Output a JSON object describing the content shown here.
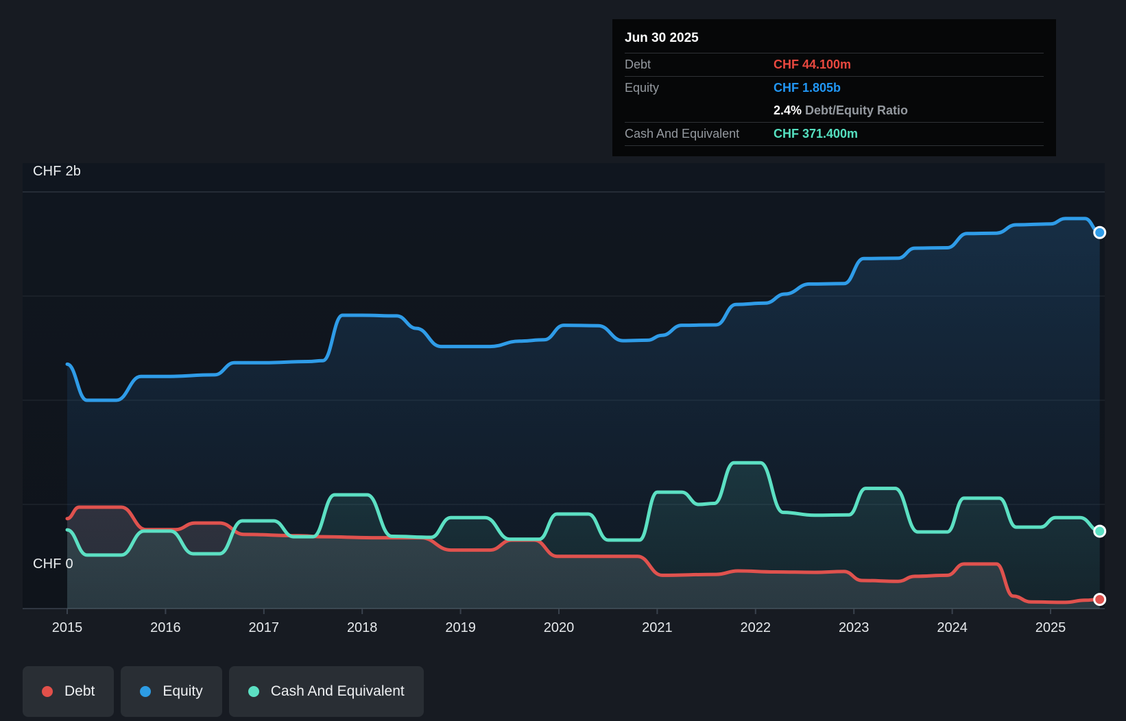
{
  "tooltip": {
    "date": "Jun 30 2025",
    "rows": {
      "debt": {
        "label": "Debt",
        "value": "CHF 44.100m",
        "color": "#e8483f"
      },
      "equity": {
        "label": "Equity",
        "value": "CHF 1.805b",
        "color": "#2196f3"
      },
      "cash": {
        "label": "Cash And Equivalent",
        "value": "CHF 371.400m",
        "color": "#55e0c0"
      }
    },
    "ratio": {
      "value": "2.4%",
      "label": "Debt/Equity Ratio"
    }
  },
  "y_axis": {
    "top_label": "CHF 2b",
    "bottom_label": "CHF 0"
  },
  "legend": {
    "items": [
      {
        "label": "Debt",
        "color": "#e2504a"
      },
      {
        "label": "Equity",
        "color": "#2d9ce4"
      },
      {
        "label": "Cash And Equivalent",
        "color": "#5ce0c3"
      }
    ]
  },
  "chart_data": {
    "type": "area",
    "title": "Debt to Equity History",
    "unit": "CHF millions",
    "x_domain": [
      2015.0,
      2025.5
    ],
    "y_domain_m": [
      0,
      2000
    ],
    "y_gridlines_m": [
      2000,
      1500,
      1000,
      500,
      0
    ],
    "x_tick_years": [
      "2015",
      "2016",
      "2017",
      "2018",
      "2019",
      "2020",
      "2021",
      "2022",
      "2023",
      "2024",
      "2025"
    ],
    "grid_on": true,
    "legend_position": "bottom-left",
    "colors": {
      "debt": "#e0524e",
      "equity": "#2f9ce8",
      "cash": "#5ce0c3"
    },
    "end_values_m": {
      "debt": 44.1,
      "equity": 1805,
      "cash": 371.4
    },
    "series": [
      {
        "name": "Equity",
        "key": "equity",
        "points": [
          [
            2015.0,
            1173
          ],
          [
            2015.2,
            1000
          ],
          [
            2015.5,
            1000
          ],
          [
            2015.75,
            1114
          ],
          [
            2016.0,
            1114
          ],
          [
            2016.5,
            1122
          ],
          [
            2016.7,
            1180
          ],
          [
            2017.0,
            1180
          ],
          [
            2017.45,
            1186
          ],
          [
            2017.6,
            1190
          ],
          [
            2017.8,
            1408
          ],
          [
            2018.0,
            1408
          ],
          [
            2018.35,
            1405
          ],
          [
            2018.55,
            1345
          ],
          [
            2018.8,
            1258
          ],
          [
            2019.3,
            1258
          ],
          [
            2019.6,
            1284
          ],
          [
            2019.85,
            1290
          ],
          [
            2020.05,
            1360
          ],
          [
            2020.4,
            1358
          ],
          [
            2020.65,
            1286
          ],
          [
            2020.9,
            1288
          ],
          [
            2021.05,
            1312
          ],
          [
            2021.25,
            1360
          ],
          [
            2021.6,
            1362
          ],
          [
            2021.8,
            1460
          ],
          [
            2022.1,
            1466
          ],
          [
            2022.3,
            1510
          ],
          [
            2022.55,
            1558
          ],
          [
            2022.9,
            1560
          ],
          [
            2023.1,
            1680
          ],
          [
            2023.45,
            1682
          ],
          [
            2023.62,
            1730
          ],
          [
            2023.95,
            1732
          ],
          [
            2024.15,
            1800
          ],
          [
            2024.45,
            1802
          ],
          [
            2024.65,
            1842
          ],
          [
            2025.0,
            1846
          ],
          [
            2025.15,
            1872
          ],
          [
            2025.35,
            1872
          ],
          [
            2025.5,
            1805
          ]
        ]
      },
      {
        "name": "Debt",
        "key": "debt",
        "points": [
          [
            2015.0,
            432
          ],
          [
            2015.12,
            487
          ],
          [
            2015.55,
            487
          ],
          [
            2015.8,
            379
          ],
          [
            2016.1,
            379
          ],
          [
            2016.3,
            411
          ],
          [
            2016.55,
            411
          ],
          [
            2016.8,
            356
          ],
          [
            2017.35,
            350
          ],
          [
            2017.6,
            345
          ],
          [
            2018.1,
            340
          ],
          [
            2018.6,
            340
          ],
          [
            2018.9,
            281
          ],
          [
            2019.3,
            281
          ],
          [
            2019.52,
            329
          ],
          [
            2019.75,
            329
          ],
          [
            2019.98,
            251
          ],
          [
            2020.8,
            251
          ],
          [
            2021.05,
            160
          ],
          [
            2021.6,
            164
          ],
          [
            2021.82,
            181
          ],
          [
            2022.2,
            176
          ],
          [
            2022.6,
            174
          ],
          [
            2022.9,
            178
          ],
          [
            2023.08,
            135
          ],
          [
            2023.45,
            131
          ],
          [
            2023.62,
            155
          ],
          [
            2023.95,
            160
          ],
          [
            2024.12,
            214
          ],
          [
            2024.45,
            214
          ],
          [
            2024.62,
            60
          ],
          [
            2024.8,
            32
          ],
          [
            2025.15,
            30
          ],
          [
            2025.35,
            40
          ],
          [
            2025.5,
            44.1
          ]
        ]
      },
      {
        "name": "Cash And Equivalent",
        "key": "cash",
        "points": [
          [
            2015.0,
            378
          ],
          [
            2015.2,
            257
          ],
          [
            2015.55,
            257
          ],
          [
            2015.78,
            372
          ],
          [
            2016.05,
            372
          ],
          [
            2016.28,
            263
          ],
          [
            2016.55,
            263
          ],
          [
            2016.78,
            421
          ],
          [
            2017.1,
            421
          ],
          [
            2017.3,
            345
          ],
          [
            2017.5,
            345
          ],
          [
            2017.72,
            546
          ],
          [
            2018.05,
            546
          ],
          [
            2018.3,
            347
          ],
          [
            2018.7,
            342
          ],
          [
            2018.9,
            437
          ],
          [
            2019.25,
            437
          ],
          [
            2019.5,
            333
          ],
          [
            2019.8,
            333
          ],
          [
            2019.98,
            454
          ],
          [
            2020.3,
            454
          ],
          [
            2020.5,
            329
          ],
          [
            2020.82,
            329
          ],
          [
            2021.0,
            559
          ],
          [
            2021.25,
            559
          ],
          [
            2021.42,
            500
          ],
          [
            2021.58,
            505
          ],
          [
            2021.78,
            700
          ],
          [
            2022.05,
            700
          ],
          [
            2022.28,
            462
          ],
          [
            2022.6,
            448
          ],
          [
            2022.95,
            450
          ],
          [
            2023.12,
            577
          ],
          [
            2023.42,
            577
          ],
          [
            2023.65,
            368
          ],
          [
            2023.95,
            368
          ],
          [
            2024.12,
            530
          ],
          [
            2024.48,
            530
          ],
          [
            2024.65,
            391
          ],
          [
            2024.9,
            391
          ],
          [
            2025.05,
            437
          ],
          [
            2025.3,
            437
          ],
          [
            2025.5,
            371.4
          ]
        ]
      }
    ]
  }
}
